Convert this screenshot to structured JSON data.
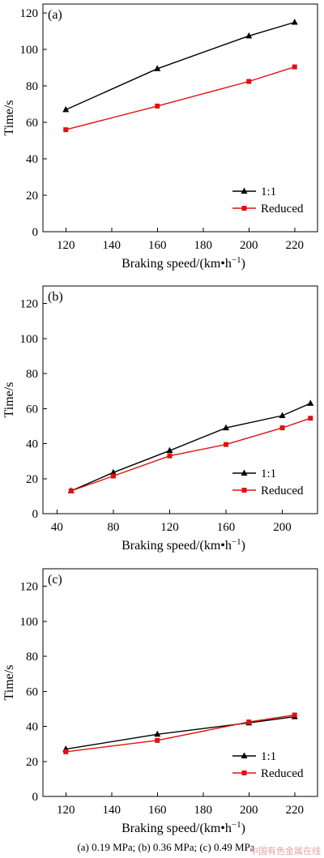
{
  "chart_data": [
    {
      "type": "line",
      "panel_label": "(a)",
      "xlabel": "Braking speed/(km•h",
      "xlabel_sup": "−1",
      "xlabel_end": ")",
      "ylabel": "Time/s",
      "xlim": [
        110,
        230
      ],
      "ylim": [
        0,
        125
      ],
      "xticks": [
        120,
        140,
        160,
        180,
        200,
        220
      ],
      "yticks": [
        0,
        20,
        40,
        60,
        80,
        100,
        120
      ],
      "legend_position": "lower-right",
      "series": [
        {
          "name": "1:1",
          "color": "#000000",
          "marker": "triangle",
          "x": [
            120,
            160,
            200,
            220
          ],
          "y": [
            67,
            89.5,
            107.5,
            115
          ]
        },
        {
          "name": "Reduced",
          "color": "#e01010",
          "marker": "square",
          "x": [
            120,
            160,
            200,
            220
          ],
          "y": [
            56,
            69,
            82.5,
            90.5
          ]
        }
      ]
    },
    {
      "type": "line",
      "panel_label": "(b)",
      "xlabel": "Braking speed/(km•h",
      "xlabel_sup": "−1",
      "xlabel_end": ")",
      "ylabel": "Time/s",
      "xlim": [
        30,
        225
      ],
      "ylim": [
        0,
        130
      ],
      "xticks": [
        40,
        80,
        120,
        160,
        200
      ],
      "yticks": [
        0,
        20,
        40,
        60,
        80,
        100,
        120
      ],
      "legend_position": "lower-right",
      "series": [
        {
          "name": "1:1",
          "color": "#000000",
          "marker": "triangle",
          "x": [
            50,
            80,
            120,
            160,
            200,
            220
          ],
          "y": [
            13,
            23.5,
            36,
            49,
            56,
            63
          ]
        },
        {
          "name": "Reduced",
          "color": "#e01010",
          "marker": "square",
          "x": [
            50,
            80,
            120,
            160,
            200,
            220
          ],
          "y": [
            13,
            21.5,
            33,
            39.5,
            49,
            54.5
          ]
        }
      ]
    },
    {
      "type": "line",
      "panel_label": "(c)",
      "xlabel": "Braking speed/(km•h",
      "xlabel_sup": "−1",
      "xlabel_end": ")",
      "ylabel": "Time/s",
      "xlim": [
        110,
        230
      ],
      "ylim": [
        0,
        130
      ],
      "xticks": [
        120,
        140,
        160,
        180,
        200,
        220
      ],
      "yticks": [
        0,
        20,
        40,
        60,
        80,
        100,
        120
      ],
      "legend_position": "lower-right",
      "series": [
        {
          "name": "1:1",
          "color": "#000000",
          "marker": "triangle",
          "x": [
            120,
            160,
            200,
            220
          ],
          "y": [
            27,
            35.5,
            42,
            45.5
          ]
        },
        {
          "name": "Reduced",
          "color": "#e01010",
          "marker": "square",
          "x": [
            120,
            160,
            200,
            220
          ],
          "y": [
            25.5,
            32,
            42.5,
            46.5
          ]
        }
      ]
    }
  ],
  "caption": "(a) 0.19 MPa;  (b) 0.36 MPa; (c) 0.49 MPa",
  "watermark": "中国有色金属在线"
}
